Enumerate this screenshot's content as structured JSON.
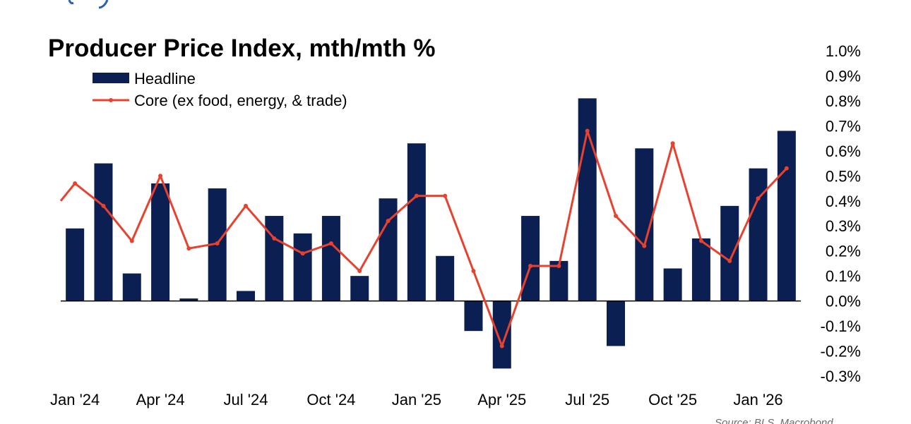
{
  "colors": {
    "headline": "#0b1f52",
    "core": "#e8412e",
    "axis": "#000000",
    "header_accent": "#2b5fb0"
  },
  "chart_data": {
    "type": "bar",
    "title": "Producer Price Index, mth/mth %",
    "xlabel": "",
    "ylabel": "",
    "ylim": [
      -0.3,
      1.0
    ],
    "y_ticks": [
      1.0,
      0.9,
      0.8,
      0.7,
      0.6,
      0.5,
      0.4,
      0.3,
      0.2,
      0.1,
      0.0,
      -0.1,
      -0.2,
      -0.3
    ],
    "y_tick_labels": [
      "1.0%",
      "0.9%",
      "0.8%",
      "0.7%",
      "0.6%",
      "0.5%",
      "0.4%",
      "0.3%",
      "0.2%",
      "0.1%",
      "0.0%",
      "-0.1%",
      "-0.2%",
      "-0.3%"
    ],
    "y_axis_side": "right",
    "legend_position": "top-left",
    "categories": [
      "Jan 24",
      "Feb 24",
      "Mar 24",
      "Apr 24",
      "May 24",
      "Jun 24",
      "Jul 24",
      "Aug 24",
      "Sep 24",
      "Oct 24",
      "Nov 24",
      "Dec 24",
      "Jan 25",
      "Feb 25",
      "Mar 25",
      "Apr 25",
      "May 25",
      "Jun 25",
      "Jul 25",
      "Aug 25",
      "Sep 25",
      "Oct 25",
      "Nov 25",
      "Dec 25",
      "Jan 26",
      "Feb 26"
    ],
    "x_tick_labels": [
      {
        "index": 0,
        "label": "Jan '24"
      },
      {
        "index": 3,
        "label": "Apr '24"
      },
      {
        "index": 6,
        "label": "Jul '24"
      },
      {
        "index": 9,
        "label": "Oct '24"
      },
      {
        "index": 12,
        "label": "Jan '25"
      },
      {
        "index": 15,
        "label": "Apr '25"
      },
      {
        "index": 18,
        "label": "Jul '25"
      },
      {
        "index": 21,
        "label": "Oct '25"
      },
      {
        "index": 24,
        "label": "Jan '26"
      }
    ],
    "series": [
      {
        "name": "Headline",
        "type": "bar",
        "values": [
          0.29,
          0.55,
          0.11,
          0.47,
          0.01,
          0.45,
          0.04,
          0.34,
          0.27,
          0.34,
          0.1,
          0.41,
          0.63,
          0.18,
          -0.12,
          -0.27,
          0.34,
          0.16,
          0.81,
          -0.18,
          0.61,
          0.13,
          0.25,
          0.38,
          0.53,
          0.68
        ]
      },
      {
        "name": "Core (ex food, energy, & trade)",
        "type": "line",
        "start_value": 0.4,
        "values": [
          0.47,
          0.38,
          0.24,
          0.5,
          0.21,
          0.23,
          0.38,
          0.25,
          0.19,
          0.23,
          0.12,
          0.32,
          0.42,
          0.42,
          0.12,
          -0.18,
          0.14,
          0.14,
          0.68,
          0.34,
          0.22,
          0.63,
          0.24,
          0.16,
          0.41,
          0.53
        ]
      }
    ]
  },
  "source": "Source: BLS, Macrobond"
}
